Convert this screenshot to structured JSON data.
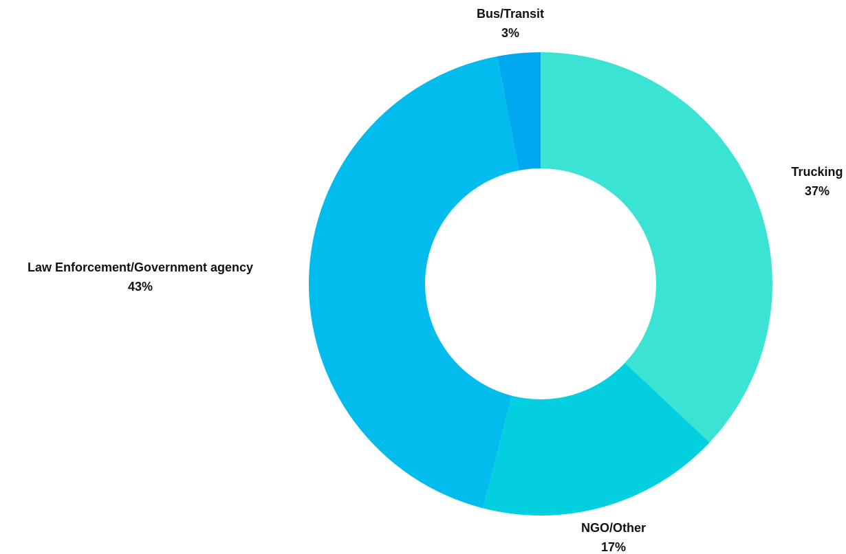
{
  "chart_data": {
    "type": "pie",
    "donut": true,
    "slices": [
      {
        "label": "Trucking",
        "value": 37,
        "value_label": "37%",
        "color": "#3ae3d4"
      },
      {
        "label": "NGO/Other",
        "value": 17,
        "value_label": "17%",
        "color": "#02cfe0"
      },
      {
        "label": "Law Enforcement/Government agency",
        "value": 43,
        "value_label": "43%",
        "color": "#02bced"
      },
      {
        "label": "Bus/Transit",
        "value": 3,
        "value_label": "3%",
        "color": "#02a8ef"
      }
    ]
  }
}
